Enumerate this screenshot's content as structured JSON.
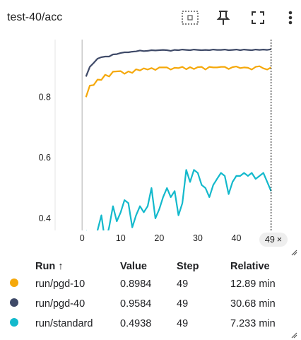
{
  "card": {
    "title": "test-40/acc"
  },
  "toolbar": {
    "icons": [
      "fit-domain-icon",
      "pin-icon",
      "fullscreen-icon",
      "more-vert-icon"
    ]
  },
  "x_readout": {
    "value": "49",
    "close": "×"
  },
  "table": {
    "headers": {
      "run": "Run ↑",
      "value": "Value",
      "step": "Step",
      "relative": "Relative"
    },
    "rows": [
      {
        "color": "#f5a80a",
        "run": "run/pgd-10",
        "value": "0.8984",
        "step": "49",
        "relative": "12.89 min"
      },
      {
        "color": "#3f4a68",
        "run": "run/pgd-40",
        "value": "0.9584",
        "step": "49",
        "relative": "30.68 min"
      },
      {
        "color": "#13b9cc",
        "run": "run/standard",
        "value": "0.4938",
        "step": "49",
        "relative": "7.233 min"
      }
    ]
  },
  "chart_data": {
    "type": "line",
    "title": "test-40/acc",
    "xlabel": "",
    "ylabel": "",
    "xlim": [
      -7,
      52
    ],
    "ylim": [
      0.36,
      0.99
    ],
    "x_ticks": [
      0,
      10,
      20,
      30,
      40
    ],
    "y_ticks": [
      0.4,
      0.6,
      0.8
    ],
    "cursor_step": 49,
    "grid": false,
    "series": [
      {
        "name": "run/pgd-10",
        "color": "#f5a80a",
        "x": [
          1,
          2,
          3,
          4,
          5,
          6,
          7,
          8,
          9,
          10,
          11,
          12,
          13,
          14,
          15,
          16,
          17,
          18,
          19,
          20,
          21,
          22,
          23,
          24,
          25,
          26,
          27,
          28,
          29,
          30,
          31,
          32,
          33,
          34,
          35,
          36,
          37,
          38,
          39,
          40,
          41,
          42,
          43,
          44,
          45,
          46,
          47,
          48,
          49
        ],
        "y": [
          0.8,
          0.838,
          0.84,
          0.858,
          0.857,
          0.874,
          0.868,
          0.884,
          0.885,
          0.886,
          0.877,
          0.885,
          0.88,
          0.892,
          0.888,
          0.895,
          0.891,
          0.896,
          0.89,
          0.898,
          0.898,
          0.898,
          0.891,
          0.897,
          0.896,
          0.9,
          0.892,
          0.899,
          0.893,
          0.899,
          0.9,
          0.891,
          0.9,
          0.898,
          0.898,
          0.9,
          0.9,
          0.893,
          0.899,
          0.901,
          0.896,
          0.898,
          0.897,
          0.891,
          0.9,
          0.902,
          0.895,
          0.891,
          0.898
        ]
      },
      {
        "name": "run/pgd-40",
        "color": "#3f4a68",
        "x": [
          1,
          2,
          3,
          4,
          5,
          6,
          7,
          8,
          9,
          10,
          11,
          12,
          13,
          14,
          15,
          16,
          17,
          18,
          19,
          20,
          21,
          22,
          23,
          24,
          25,
          26,
          27,
          28,
          29,
          30,
          31,
          32,
          33,
          34,
          35,
          36,
          37,
          38,
          39,
          40,
          41,
          42,
          43,
          44,
          45,
          46,
          47,
          48,
          49
        ],
        "y": [
          0.868,
          0.9,
          0.913,
          0.927,
          0.932,
          0.934,
          0.934,
          0.941,
          0.942,
          0.946,
          0.948,
          0.948,
          0.95,
          0.951,
          0.954,
          0.952,
          0.953,
          0.955,
          0.954,
          0.955,
          0.956,
          0.955,
          0.953,
          0.956,
          0.955,
          0.957,
          0.956,
          0.955,
          0.957,
          0.956,
          0.955,
          0.956,
          0.955,
          0.957,
          0.956,
          0.956,
          0.957,
          0.955,
          0.956,
          0.957,
          0.955,
          0.957,
          0.956,
          0.955,
          0.957,
          0.956,
          0.957,
          0.956,
          0.958
        ]
      },
      {
        "name": "run/standard",
        "color": "#13b9cc",
        "x": [
          1,
          2,
          3,
          4,
          5,
          6,
          7,
          8,
          9,
          10,
          11,
          12,
          13,
          14,
          15,
          16,
          17,
          18,
          19,
          20,
          21,
          22,
          23,
          24,
          25,
          26,
          27,
          28,
          29,
          30,
          31,
          32,
          33,
          34,
          35,
          36,
          37,
          38,
          39,
          40,
          41,
          42,
          43,
          44,
          45,
          46,
          47,
          48,
          49
        ],
        "y": [
          0.36,
          0.34,
          0.33,
          0.36,
          0.41,
          0.32,
          0.37,
          0.44,
          0.39,
          0.42,
          0.46,
          0.45,
          0.37,
          0.41,
          0.44,
          0.42,
          0.44,
          0.5,
          0.4,
          0.43,
          0.47,
          0.5,
          0.47,
          0.49,
          0.41,
          0.45,
          0.56,
          0.52,
          0.56,
          0.55,
          0.51,
          0.5,
          0.47,
          0.51,
          0.53,
          0.55,
          0.54,
          0.48,
          0.52,
          0.54,
          0.54,
          0.55,
          0.54,
          0.55,
          0.53,
          0.54,
          0.55,
          0.52,
          0.49
        ]
      }
    ]
  }
}
